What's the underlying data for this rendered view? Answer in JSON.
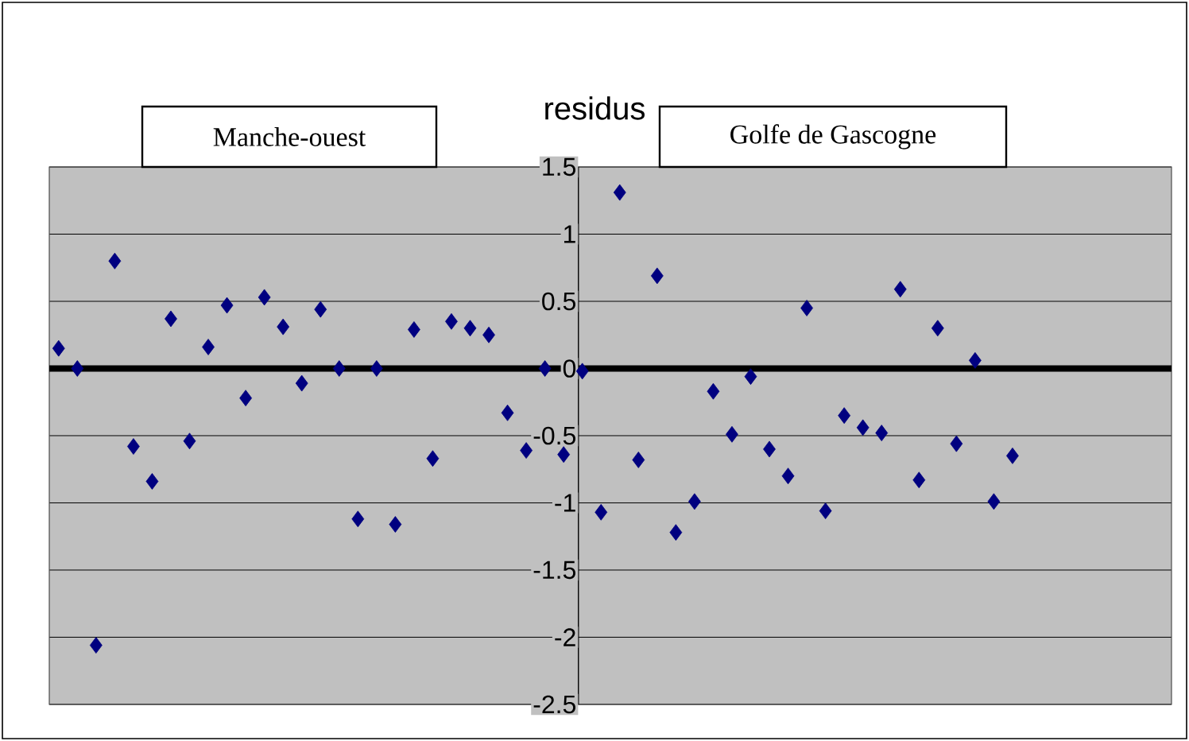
{
  "chart_data": {
    "type": "scatter",
    "title": "residus",
    "annotations": [
      "Manche-ouest",
      "Golfe de Gascogne"
    ],
    "categories": [
      null,
      null,
      null,
      null,
      null,
      null,
      null,
      null,
      null,
      null,
      null,
      null,
      null,
      null,
      null,
      null,
      null,
      null,
      null,
      null,
      null,
      null,
      null,
      null,
      null,
      null,
      null,
      null,
      null,
      null,
      null,
      null,
      null,
      null,
      null,
      null,
      null,
      null,
      null,
      null,
      null,
      null,
      null,
      null,
      null,
      null,
      null,
      null,
      null,
      null,
      null,
      null,
      null,
      null,
      null,
      null,
      null,
      null,
      null,
      null
    ],
    "values": [
      0.15,
      0.0,
      -2.06,
      0.8,
      -0.58,
      -0.84,
      0.37,
      -0.54,
      0.16,
      0.47,
      -0.22,
      0.53,
      0.31,
      -0.11,
      0.44,
      0.0,
      -1.12,
      0.0,
      -1.16,
      0.29,
      -0.67,
      0.35,
      0.3,
      0.25,
      -0.33,
      -0.61,
      0.0,
      -0.64,
      -0.02,
      -1.07,
      1.31,
      -0.68,
      0.69,
      -1.22,
      -0.99,
      -0.17,
      -0.49,
      -0.06,
      -0.6,
      -0.8,
      0.45,
      -1.06,
      -0.35,
      -0.44,
      -0.48,
      0.59,
      -0.83,
      0.3,
      -0.56,
      0.06,
      -0.99,
      -0.65,
      null,
      null,
      null,
      null,
      null,
      null,
      null,
      null
    ],
    "color": "#000080",
    "marker": "diamond",
    "grid": "y",
    "tick_labels": "y",
    "ylim": [
      -2.5,
      1.5
    ],
    "yticks": [
      -2.5,
      -2,
      -1.5,
      -1,
      -0.5,
      0,
      0.5,
      1,
      1.5
    ],
    "ref_lines": [
      {
        "axis": "y",
        "value": 0,
        "color": "#000000"
      }
    ]
  }
}
